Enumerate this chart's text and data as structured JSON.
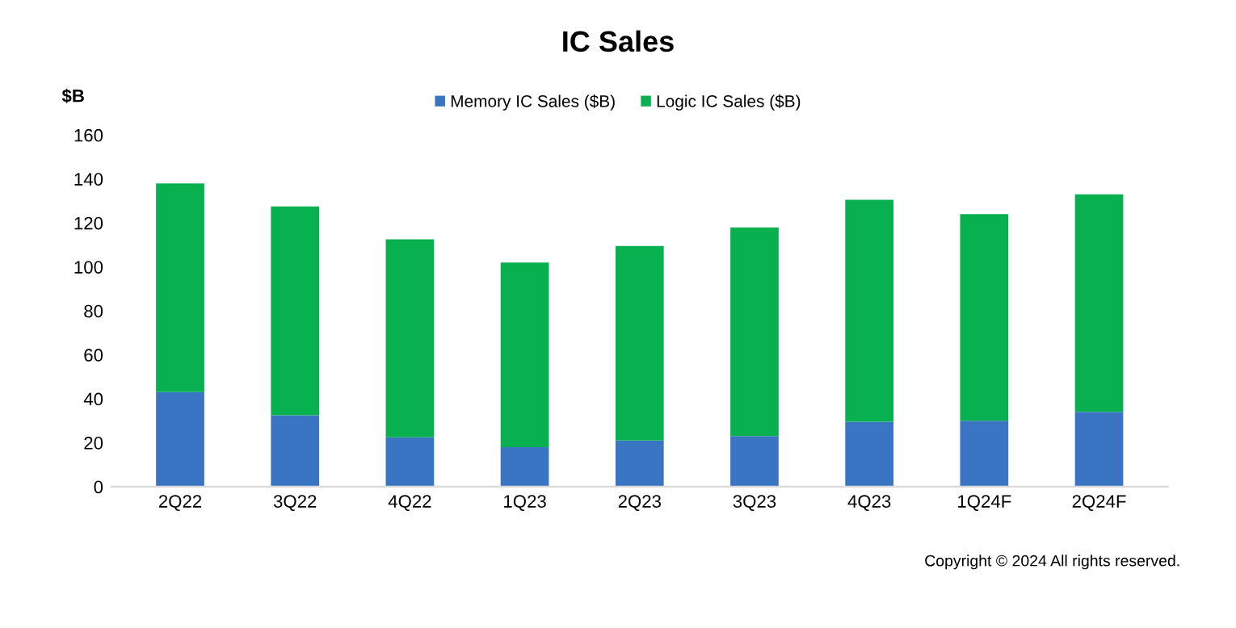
{
  "chart_data": {
    "type": "bar",
    "title": "IC Sales",
    "ylabel": "$B",
    "stacked": true,
    "categories": [
      "2Q22",
      "3Q22",
      "4Q22",
      "1Q23",
      "2Q23",
      "3Q23",
      "4Q23",
      "1Q24F",
      "2Q24F"
    ],
    "series": [
      {
        "name": "Memory IC Sales ($B)",
        "color": "#3a75c4",
        "values": [
          43,
          32.5,
          22.5,
          18,
          21,
          23,
          29.5,
          30,
          34
        ]
      },
      {
        "name": "Logic IC Sales ($B)",
        "color": "#08b050",
        "values": [
          95,
          95,
          90,
          84,
          88.5,
          95,
          101,
          94,
          99
        ]
      }
    ],
    "ylim": [
      0,
      160
    ],
    "yticks": [
      0,
      20,
      40,
      60,
      80,
      100,
      120,
      140,
      160
    ],
    "grid": false,
    "legend": "top",
    "annotations": [
      "Copyright © 2024 All rights reserved."
    ]
  }
}
